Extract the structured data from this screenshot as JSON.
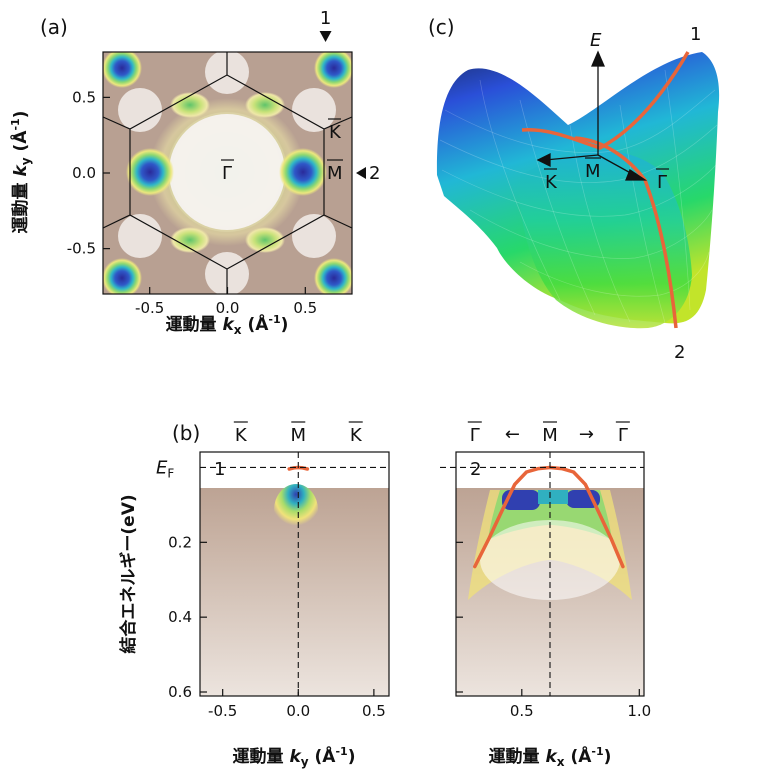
{
  "panels": {
    "a": "(a)",
    "b": "(b)",
    "c": "(c)"
  },
  "chart_data": [
    {
      "type": "heatmap",
      "panel": "(a)",
      "xlabel_prefix": "運動量 ",
      "xlabel_var": "k",
      "xlabel_sub": "x",
      "xlabel_unit": " (Å",
      "xlabel_unit_exp": "-1",
      "xlabel_unit_close": ")",
      "ylabel_prefix": "運動量 ",
      "ylabel_var": "k",
      "ylabel_sub": "y",
      "ylabel_unit": " (Å",
      "ylabel_unit_exp": "-1",
      "ylabel_unit_close": ")",
      "xlim": [
        -0.8,
        0.8
      ],
      "ylim": [
        -0.8,
        0.8
      ],
      "xticks": [
        -0.5,
        0.0,
        0.5
      ],
      "xtick_labels": [
        "-0.5",
        "0.0",
        "0.5"
      ],
      "yticks": [
        0.5,
        0.0,
        -0.5
      ],
      "ytick_labels": [
        "0.5",
        "0.0",
        "-0.5"
      ],
      "point_labels": {
        "Gamma": "Γ",
        "K": "K",
        "M": "M"
      },
      "cut_markers": [
        {
          "label": "1",
          "x": 0.63,
          "y": 0.8,
          "direction": "down"
        },
        {
          "label": "2",
          "x": 0.8,
          "y": 0.0,
          "direction": "left"
        }
      ]
    },
    {
      "type": "heatmap",
      "panel": "(b)",
      "cut": "1",
      "xlabel_prefix": "運動量 ",
      "xlabel_var": "k",
      "xlabel_sub": "y",
      "xlabel_unit": " (Å",
      "xlabel_unit_exp": "-1",
      "xlabel_unit_close": ")",
      "ylabel": "結合エネルギー(eV)",
      "xlim": [
        -0.65,
        0.6
      ],
      "ylim": [
        0.6,
        -0.02
      ],
      "xticks": [
        -0.5,
        0.0,
        0.5
      ],
      "xtick_labels": [
        "-0.5",
        "0.0",
        "0.5"
      ],
      "yticks": [
        0.2,
        0.4,
        0.6
      ],
      "ytick_labels": [
        "0.2",
        "0.4",
        "0.6"
      ],
      "fermi_label_main": "E",
      "fermi_label_sub": "F",
      "top_labels": [
        "K",
        "M",
        "K"
      ],
      "top_label_x": [
        -0.38,
        0.0,
        0.38
      ],
      "band": {
        "x": [
          -0.06,
          -0.03,
          0.0,
          0.03,
          0.06
        ],
        "y": [
          0.004,
          0.001,
          0.0,
          0.001,
          0.004
        ]
      }
    },
    {
      "type": "heatmap",
      "panel": "(b)",
      "cut": "2",
      "xlabel_prefix": "運動量 ",
      "xlabel_var": "k",
      "xlabel_sub": "x",
      "xlabel_unit": " (Å",
      "xlabel_unit_exp": "-1",
      "xlabel_unit_close": ")",
      "xlim": [
        0.22,
        1.02
      ],
      "ylim": [
        0.6,
        -0.02
      ],
      "xticks": [
        0.5,
        1.0
      ],
      "xtick_labels": [
        "0.5",
        "1.0"
      ],
      "top_labels": [
        "Γ",
        "M",
        "Γ"
      ],
      "top_label_x": [
        0.3,
        0.62,
        0.93
      ],
      "arrow_left": "←",
      "arrow_right": "→",
      "band": {
        "x": [
          0.3,
          0.36,
          0.42,
          0.47,
          0.52,
          0.57,
          0.62,
          0.67,
          0.72,
          0.77,
          0.82,
          0.88,
          0.93
        ],
        "y": [
          0.265,
          0.19,
          0.11,
          0.045,
          0.012,
          0.003,
          0.0,
          0.003,
          0.012,
          0.045,
          0.11,
          0.19,
          0.265
        ]
      }
    },
    {
      "type": "surface",
      "panel": "(c)",
      "energy_axis_label": "E",
      "axis_labels": {
        "K": "K",
        "M": "M",
        "Gamma": "Γ"
      },
      "curve_labels": [
        "1",
        "2"
      ]
    }
  ]
}
